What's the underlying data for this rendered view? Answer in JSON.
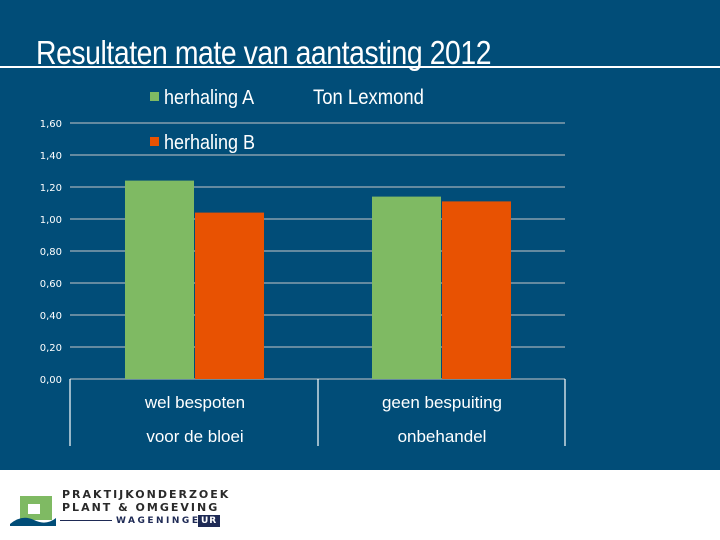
{
  "slide": {
    "title": "Resultaten mate van aantasting 2012",
    "author": "Ton Lexmond"
  },
  "colors": {
    "background": "#014d78",
    "series_a": "#7fba63",
    "series_b": "#e85202",
    "gridline": "#c8c8c8"
  },
  "chart_data": {
    "type": "bar",
    "categories": [
      [
        "wel bespoten",
        "voor de bloei"
      ],
      [
        "geen bespuiting",
        "onbehandel"
      ]
    ],
    "series": [
      {
        "name": "herhaling A",
        "values": [
          1.24,
          1.14
        ]
      },
      {
        "name": "herhaling B",
        "values": [
          1.04,
          1.11
        ]
      }
    ],
    "yticks": [
      "0,00",
      "0,20",
      "0,40",
      "0,60",
      "0,80",
      "1,00",
      "1,20",
      "1,40",
      "1,60"
    ],
    "ylim": [
      0,
      1.6
    ],
    "grid": true,
    "legend_position": "top-left"
  },
  "footer": {
    "logo_line1": "PRAKTIJKONDERZOEK",
    "logo_line2": "PLANT & OMGEVING",
    "logo_line3": "WAGENINGEN",
    "logo_line4": "UR"
  }
}
